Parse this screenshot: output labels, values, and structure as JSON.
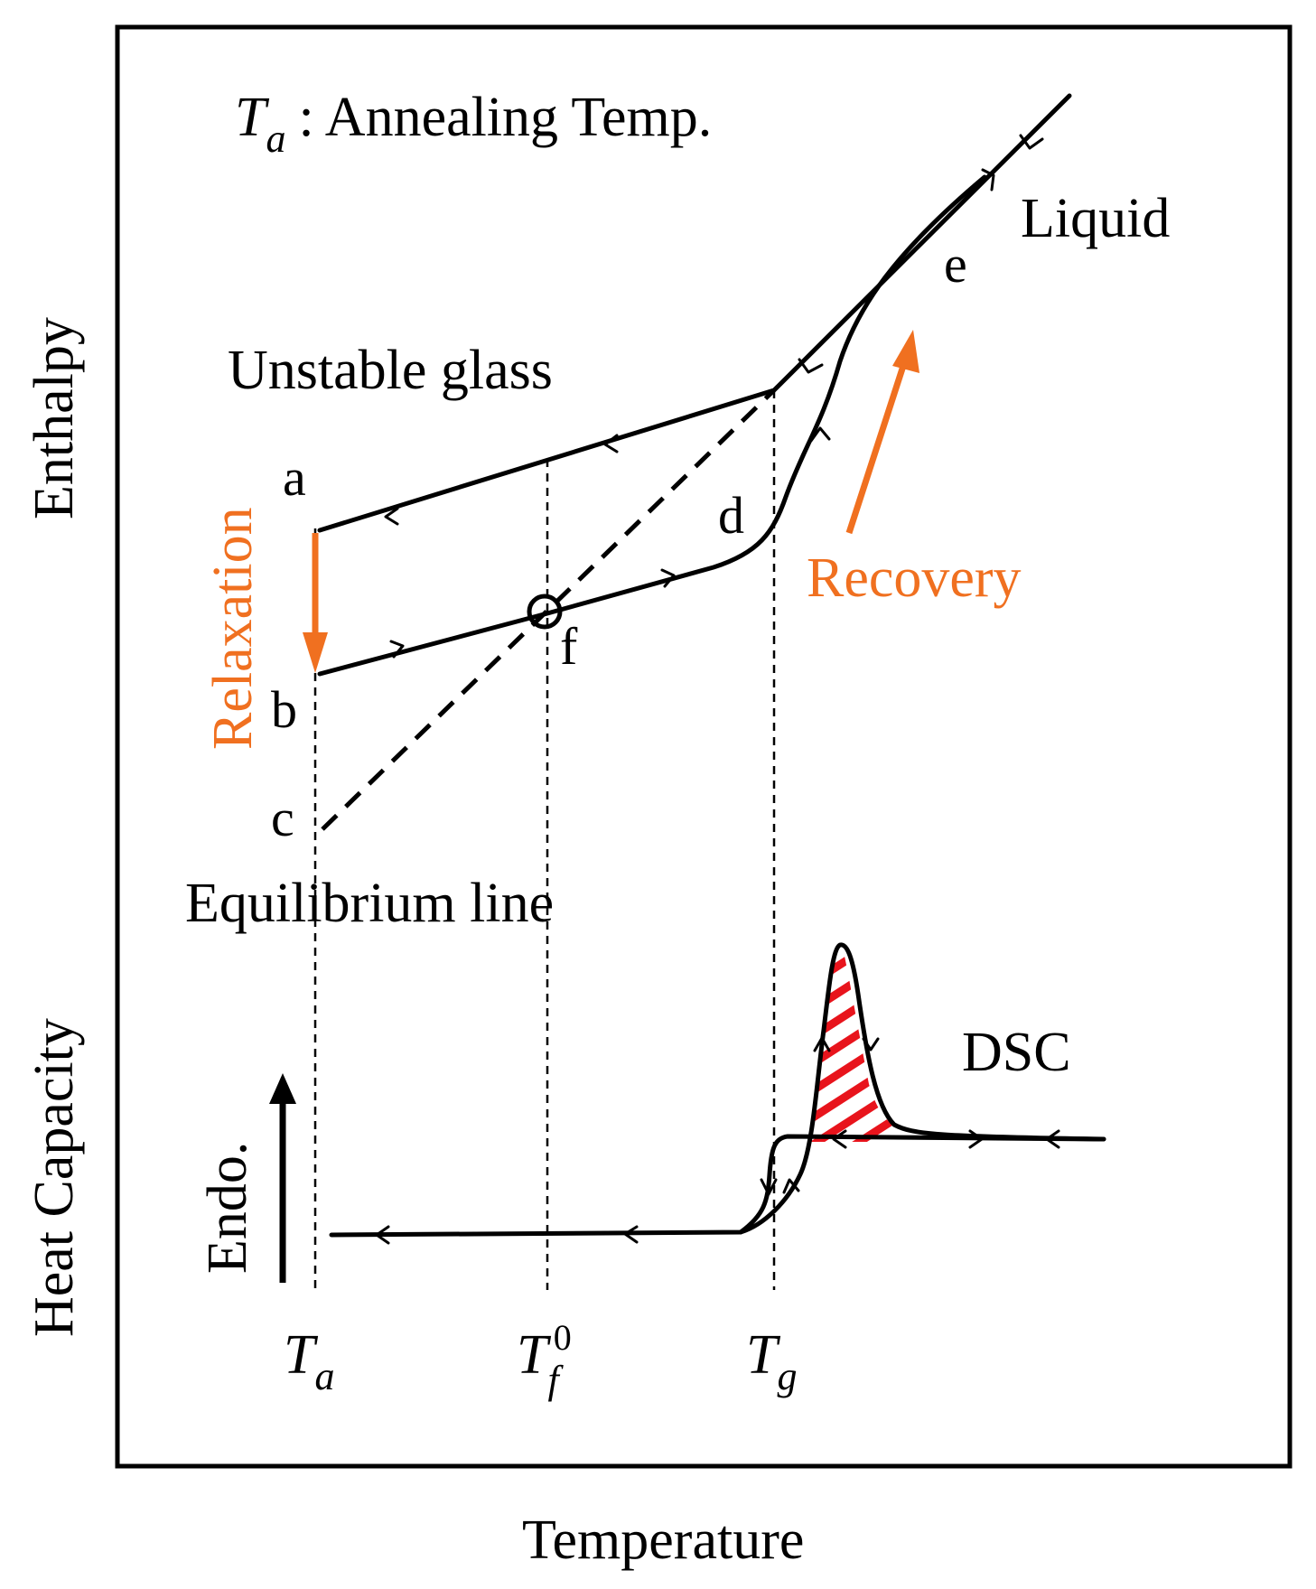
{
  "diagram": {
    "title_symbol": "T",
    "title_symbol_sub": "a",
    "title_text": ": Annealing Temp.",
    "y_axis_top": "Enthalpy",
    "y_axis_bottom": "Heat Capacity",
    "x_axis": "Temperature",
    "labels": {
      "liquid": "Liquid",
      "unstable_glass": "Unstable glass",
      "equilibrium_line": "Equilibrium line",
      "relaxation": "Relaxation",
      "recovery": "Recovery",
      "dsc": "DSC",
      "endo": "Endo."
    },
    "points": {
      "a": "a",
      "b": "b",
      "c": "c",
      "d": "d",
      "e": "e",
      "f": "f"
    },
    "ticks": {
      "ta_main": "T",
      "ta_sub": "a",
      "tf_main": "T",
      "tf_sub": "f",
      "tf_sup": "0",
      "tg_main": "T",
      "tg_sub": "g"
    },
    "colors": {
      "accent": "#f07020",
      "hatch": "#e8141c",
      "line": "#000000"
    }
  }
}
